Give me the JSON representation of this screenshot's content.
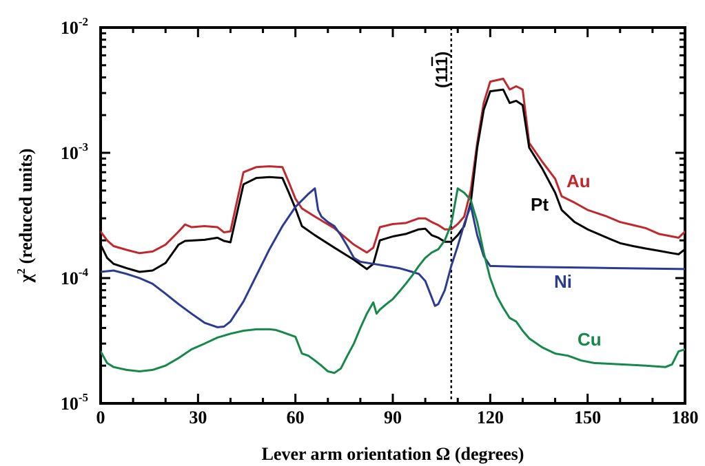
{
  "chart_data": {
    "type": "line",
    "xlabel": "Lever arm orientation  Ω  (degrees)",
    "ylabel_prefix": "χ",
    "ylabel_sup": "2",
    "ylabel_suffix": " (reduced units)",
    "xlim": [
      0,
      180
    ],
    "ylim": [
      1e-05,
      0.01
    ],
    "yscale": "log",
    "x_ticks": [
      "0",
      "30",
      "60",
      "90",
      "120",
      "150",
      "180"
    ],
    "y_ticks": [
      {
        "base": "10",
        "exp": "-5"
      },
      {
        "base": "10",
        "exp": "-4"
      },
      {
        "base": "10",
        "exp": "-3"
      },
      {
        "base": "10",
        "exp": "-2"
      }
    ],
    "grid": false,
    "reference_line": {
      "x": 108,
      "label_main": "(11",
      "label_bar": "1",
      "label_close": ")",
      "style": "dotted"
    },
    "series": [
      {
        "name": "Au",
        "color": "#c0282d",
        "points": [
          [
            0,
            0.000235
          ],
          [
            2,
            0.0002
          ],
          [
            4,
            0.00018
          ],
          [
            8,
            0.000168
          ],
          [
            12,
            0.000158
          ],
          [
            16,
            0.000163
          ],
          [
            20,
            0.000185
          ],
          [
            24,
            0.000235
          ],
          [
            26,
            0.000268
          ],
          [
            28,
            0.000255
          ],
          [
            32,
            0.00026
          ],
          [
            36,
            0.000255
          ],
          [
            38,
            0.000232
          ],
          [
            40,
            0.000236
          ],
          [
            42,
            0.00041
          ],
          [
            44,
            0.0007
          ],
          [
            48,
            0.00077
          ],
          [
            52,
            0.00078
          ],
          [
            56,
            0.00077
          ],
          [
            58,
            0.00058
          ],
          [
            60,
            0.00043
          ],
          [
            62,
            0.00036
          ],
          [
            66,
            0.00031
          ],
          [
            72,
            0.00025
          ],
          [
            78,
            0.000185
          ],
          [
            82,
            0.00016
          ],
          [
            84,
            0.000175
          ],
          [
            86,
            0.000255
          ],
          [
            90,
            0.00027
          ],
          [
            94,
            0.000275
          ],
          [
            98,
            0.0003
          ],
          [
            100,
            0.0003
          ],
          [
            102,
            0.00028
          ],
          [
            104,
            0.000265
          ],
          [
            106,
            0.000245
          ],
          [
            108,
            0.000245
          ],
          [
            110,
            0.00027
          ],
          [
            112,
            0.00031
          ],
          [
            114,
            0.0005
          ],
          [
            116,
            0.0012
          ],
          [
            118,
            0.0025
          ],
          [
            120,
            0.0037
          ],
          [
            124,
            0.0039
          ],
          [
            126,
            0.0032
          ],
          [
            128,
            0.0034
          ],
          [
            130,
            0.0032
          ],
          [
            132,
            0.0012
          ],
          [
            136,
            0.00085
          ],
          [
            140,
            0.00062
          ],
          [
            142,
            0.00045
          ],
          [
            146,
            0.0004
          ],
          [
            150,
            0.00035
          ],
          [
            156,
            0.00031
          ],
          [
            160,
            0.00028
          ],
          [
            164,
            0.000265
          ],
          [
            168,
            0.00025
          ],
          [
            172,
            0.000225
          ],
          [
            176,
            0.000215
          ],
          [
            178,
            0.00021
          ],
          [
            180,
            0.000235
          ]
        ]
      },
      {
        "name": "Pt",
        "color": "#000000",
        "points": [
          [
            0,
            0.000185
          ],
          [
            2,
            0.000145
          ],
          [
            4,
            0.00013
          ],
          [
            8,
            0.00012
          ],
          [
            12,
            0.000112
          ],
          [
            16,
            0.000115
          ],
          [
            20,
            0.000132
          ],
          [
            24,
            0.000185
          ],
          [
            26,
            0.000198
          ],
          [
            32,
            0.000202
          ],
          [
            36,
            0.00021
          ],
          [
            38,
            0.000198
          ],
          [
            40,
            0.000193
          ],
          [
            42,
            0.00033
          ],
          [
            44,
            0.00056
          ],
          [
            48,
            0.00063
          ],
          [
            52,
            0.00064
          ],
          [
            56,
            0.00063
          ],
          [
            58,
            0.00048
          ],
          [
            60,
            0.00036
          ],
          [
            62,
            0.00026
          ],
          [
            66,
            0.00022
          ],
          [
            72,
            0.000175
          ],
          [
            78,
            0.00014
          ],
          [
            82,
            0.000118
          ],
          [
            84,
            0.00013
          ],
          [
            86,
            0.0002
          ],
          [
            90,
            0.000215
          ],
          [
            94,
            0.000225
          ],
          [
            98,
            0.000245
          ],
          [
            100,
            0.000248
          ],
          [
            102,
            0.00022
          ],
          [
            104,
            0.00021
          ],
          [
            106,
            0.000195
          ],
          [
            108,
            0.000195
          ],
          [
            110,
            0.00022
          ],
          [
            112,
            0.00026
          ],
          [
            114,
            0.0004
          ],
          [
            116,
            0.0011
          ],
          [
            118,
            0.0022
          ],
          [
            120,
            0.0031
          ],
          [
            124,
            0.0032
          ],
          [
            126,
            0.0025
          ],
          [
            128,
            0.0026
          ],
          [
            130,
            0.0024
          ],
          [
            132,
            0.0011
          ],
          [
            136,
            0.00075
          ],
          [
            140,
            0.00048
          ],
          [
            142,
            0.00035
          ],
          [
            146,
            0.00028
          ],
          [
            150,
            0.000245
          ],
          [
            156,
            0.00021
          ],
          [
            160,
            0.00019
          ],
          [
            164,
            0.00018
          ],
          [
            168,
            0.000172
          ],
          [
            172,
            0.000165
          ],
          [
            176,
            0.000158
          ],
          [
            178,
            0.000155
          ],
          [
            180,
            0.00017
          ]
        ]
      },
      {
        "name": "Ni",
        "color": "#2b3a93",
        "points": [
          [
            0,
            0.000112
          ],
          [
            4,
            0.000115
          ],
          [
            8,
            0.000108
          ],
          [
            12,
            0.0001
          ],
          [
            16,
            9e-05
          ],
          [
            20,
            7.5e-05
          ],
          [
            24,
            6.2e-05
          ],
          [
            28,
            5.2e-05
          ],
          [
            32,
            4.4e-05
          ],
          [
            36,
            4.05e-05
          ],
          [
            38,
            4.1e-05
          ],
          [
            40,
            4.5e-05
          ],
          [
            44,
            6.5e-05
          ],
          [
            48,
            0.000105
          ],
          [
            52,
            0.00017
          ],
          [
            56,
            0.00026
          ],
          [
            60,
            0.00037
          ],
          [
            64,
            0.00047
          ],
          [
            66,
            0.00052
          ],
          [
            67,
            0.00035
          ],
          [
            68,
            0.00031
          ],
          [
            70,
            0.00028
          ],
          [
            72,
            0.00026
          ],
          [
            74,
            0.00022
          ],
          [
            76,
            0.00018
          ],
          [
            78,
            0.000145
          ],
          [
            80,
            0.000135
          ],
          [
            84,
            0.00013
          ],
          [
            88,
            0.000125
          ],
          [
            92,
            0.00012
          ],
          [
            96,
            0.000112
          ],
          [
            98,
            0.000108
          ],
          [
            100,
            9.5e-05
          ],
          [
            102,
            7e-05
          ],
          [
            103,
            6e-05
          ],
          [
            104,
            6.2e-05
          ],
          [
            106,
            8e-05
          ],
          [
            108,
            0.000125
          ],
          [
            110,
            0.00018
          ],
          [
            112,
            0.00027
          ],
          [
            114,
            0.00038
          ],
          [
            116,
            0.00022
          ],
          [
            118,
            0.00015
          ],
          [
            120,
            0.000125
          ],
          [
            130,
            0.000123
          ],
          [
            140,
            0.000122
          ],
          [
            150,
            0.000121
          ],
          [
            160,
            0.00012
          ],
          [
            170,
            0.000119
          ],
          [
            180,
            0.000118
          ]
        ]
      },
      {
        "name": "Cu",
        "color": "#15884a",
        "points": [
          [
            0,
            2.6e-05
          ],
          [
            2,
            2.1e-05
          ],
          [
            4,
            1.95e-05
          ],
          [
            8,
            1.85e-05
          ],
          [
            12,
            1.8e-05
          ],
          [
            16,
            1.85e-05
          ],
          [
            20,
            2e-05
          ],
          [
            24,
            2.3e-05
          ],
          [
            28,
            2.7e-05
          ],
          [
            32,
            3e-05
          ],
          [
            36,
            3.35e-05
          ],
          [
            40,
            3.6e-05
          ],
          [
            44,
            3.8e-05
          ],
          [
            48,
            3.9e-05
          ],
          [
            52,
            3.9e-05
          ],
          [
            54,
            3.85e-05
          ],
          [
            56,
            3.7e-05
          ],
          [
            58,
            3.55e-05
          ],
          [
            60,
            3.4e-05
          ],
          [
            62,
            2.5e-05
          ],
          [
            64,
            2.4e-05
          ],
          [
            66,
            2.2e-05
          ],
          [
            68,
            2e-05
          ],
          [
            70,
            1.8e-05
          ],
          [
            72,
            1.75e-05
          ],
          [
            74,
            1.9e-05
          ],
          [
            76,
            2.4e-05
          ],
          [
            78,
            3e-05
          ],
          [
            80,
            4e-05
          ],
          [
            82,
            5.2e-05
          ],
          [
            84,
            6.4e-05
          ],
          [
            85,
            5.2e-05
          ],
          [
            86,
            5.6e-05
          ],
          [
            88,
            6.2e-05
          ],
          [
            90,
            6.8e-05
          ],
          [
            92,
            7.8e-05
          ],
          [
            94,
            9e-05
          ],
          [
            96,
            0.000105
          ],
          [
            98,
            0.000125
          ],
          [
            100,
            0.000145
          ],
          [
            102,
            0.00016
          ],
          [
            104,
            0.00017
          ],
          [
            106,
            0.0002
          ],
          [
            108,
            0.00027
          ],
          [
            110,
            0.00052
          ],
          [
            112,
            0.00048
          ],
          [
            114,
            0.00042
          ],
          [
            116,
            0.00028
          ],
          [
            118,
            0.00016
          ],
          [
            120,
            0.0001
          ],
          [
            122,
            7.2e-05
          ],
          [
            124,
            5.8e-05
          ],
          [
            126,
            4.8e-05
          ],
          [
            128,
            4.5e-05
          ],
          [
            130,
            3.8e-05
          ],
          [
            132,
            3.3e-05
          ],
          [
            136,
            2.8e-05
          ],
          [
            140,
            2.5e-05
          ],
          [
            144,
            2.4e-05
          ],
          [
            148,
            2.2e-05
          ],
          [
            152,
            2.1e-05
          ],
          [
            160,
            2.05e-05
          ],
          [
            168,
            2e-05
          ],
          [
            174,
            1.95e-05
          ],
          [
            176,
            2.05e-05
          ],
          [
            178,
            2.6e-05
          ],
          [
            180,
            2.7e-05
          ]
        ]
      }
    ],
    "series_labels": [
      "Au",
      "Pt",
      "Ni",
      "Cu"
    ]
  }
}
